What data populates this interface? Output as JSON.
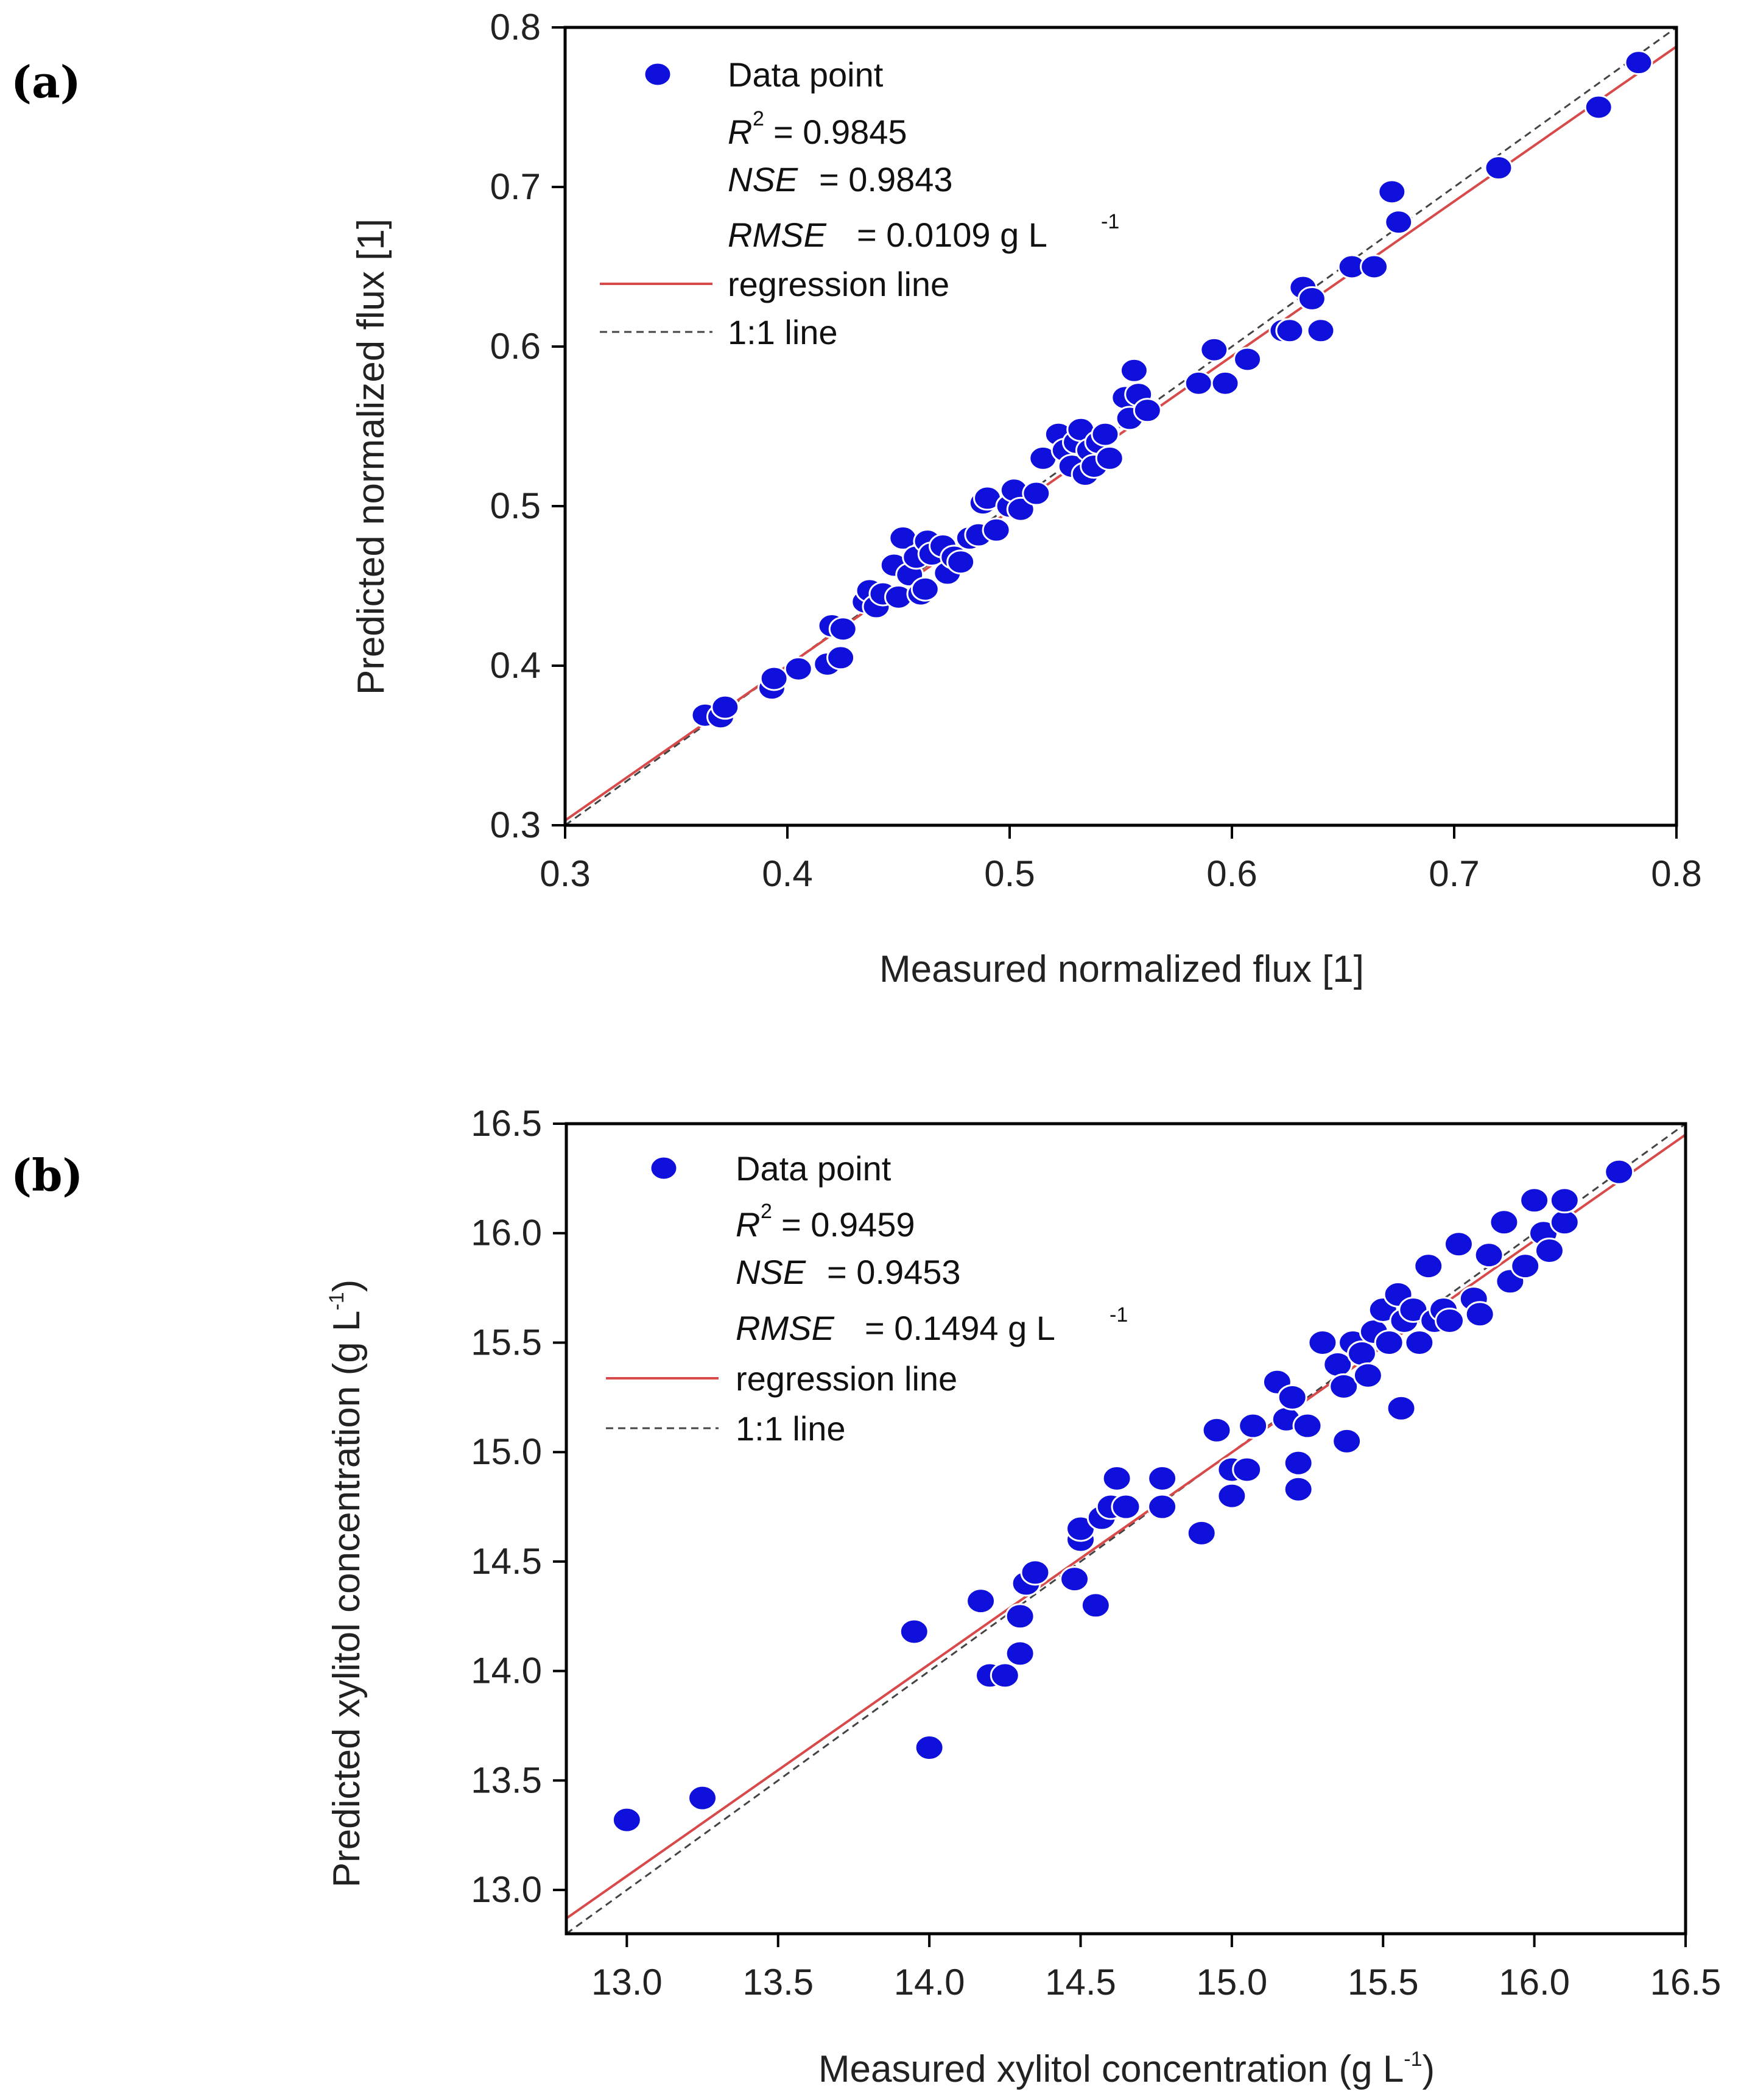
{
  "chart_data": [
    {
      "type": "scatter",
      "panel_label": "(a)",
      "xlabel": "Measured normalized flux [1]",
      "ylabel": "Predicted normalized flux [1]",
      "xlim": [
        0.3,
        0.8
      ],
      "ylim": [
        0.3,
        0.8
      ],
      "xticks": [
        "0.3",
        "0.4",
        "0.5",
        "0.6",
        "0.7",
        "0.8"
      ],
      "yticks": [
        "0.3",
        "0.4",
        "0.5",
        "0.6",
        "0.7",
        "0.8"
      ],
      "legend": {
        "data_point": "Data point",
        "r2_label": "R",
        "r2_sup": "2",
        "r2_value": "= 0.9845",
        "nse_label": "NSE",
        "nse_value": "= 0.9843",
        "rmse_label": "RMSE",
        "rmse_value": "= 0.0109 g L",
        "rmse_sup": "-1",
        "regression": "regression line",
        "oneone": "1:1 line"
      },
      "regression_line": [
        [
          0.3,
          0.303
        ],
        [
          0.8,
          0.788
        ]
      ],
      "x": [
        0.363,
        0.37,
        0.372,
        0.393,
        0.394,
        0.405,
        0.418,
        0.42,
        0.424,
        0.425,
        0.435,
        0.437,
        0.44,
        0.443,
        0.448,
        0.45,
        0.452,
        0.455,
        0.458,
        0.46,
        0.462,
        0.463,
        0.465,
        0.47,
        0.472,
        0.475,
        0.478,
        0.482,
        0.486,
        0.488,
        0.49,
        0.494,
        0.5,
        0.502,
        0.505,
        0.512,
        0.515,
        0.522,
        0.525,
        0.528,
        0.53,
        0.532,
        0.534,
        0.536,
        0.538,
        0.54,
        0.543,
        0.545,
        0.552,
        0.554,
        0.556,
        0.558,
        0.562,
        0.585,
        0.592,
        0.597,
        0.607,
        0.623,
        0.626,
        0.632,
        0.636,
        0.64,
        0.654,
        0.664,
        0.672,
        0.675,
        0.72,
        0.765,
        0.783
      ],
      "y": [
        0.369,
        0.368,
        0.374,
        0.386,
        0.392,
        0.398,
        0.401,
        0.425,
        0.405,
        0.423,
        0.44,
        0.447,
        0.437,
        0.445,
        0.463,
        0.443,
        0.48,
        0.457,
        0.468,
        0.445,
        0.448,
        0.478,
        0.47,
        0.475,
        0.458,
        0.468,
        0.465,
        0.48,
        0.482,
        0.502,
        0.505,
        0.485,
        0.5,
        0.51,
        0.498,
        0.508,
        0.53,
        0.545,
        0.535,
        0.525,
        0.54,
        0.548,
        0.52,
        0.535,
        0.525,
        0.54,
        0.545,
        0.53,
        0.568,
        0.555,
        0.585,
        0.57,
        0.56,
        0.577,
        0.598,
        0.577,
        0.592,
        0.61,
        0.61,
        0.637,
        0.63,
        0.61,
        0.65,
        0.65,
        0.697,
        0.678,
        0.712,
        0.75,
        0.778
      ]
    },
    {
      "type": "scatter",
      "panel_label": "(b)",
      "xlabel": "Measured xylitol concentration (g L",
      "xlabel_sup": "-1",
      "xlabel_end": ")",
      "ylabel": "Predicted xylitol concentration (g L",
      "ylabel_sup": "-1",
      "ylabel_end": ")",
      "xlim": [
        12.8,
        16.5
      ],
      "ylim": [
        12.8,
        16.5
      ],
      "xticks": [
        "13.0",
        "13.5",
        "14.0",
        "14.5",
        "15.0",
        "15.5",
        "16.0",
        "16.5"
      ],
      "yticks": [
        "13.0",
        "13.5",
        "14.0",
        "14.5",
        "15.0",
        "15.5",
        "16.0",
        "16.5"
      ],
      "legend": {
        "data_point": "Data point",
        "r2_label": "R",
        "r2_sup": "2",
        "r2_value": "= 0.9459",
        "nse_label": "NSE",
        "nse_value": "= 0.9453",
        "rmse_label": "RMSE",
        "rmse_value": "= 0.1494 g L",
        "rmse_sup": "-1",
        "regression": "regression line",
        "oneone": "1:1 line"
      },
      "regression_line": [
        [
          12.8,
          12.87
        ],
        [
          16.5,
          16.45
        ]
      ],
      "x": [
        13.0,
        13.25,
        13.95,
        14.0,
        14.17,
        14.2,
        14.25,
        14.3,
        14.3,
        14.32,
        14.35,
        14.48,
        14.5,
        14.5,
        14.55,
        14.57,
        14.6,
        14.62,
        14.65,
        14.77,
        14.77,
        14.9,
        14.95,
        15.0,
        15.0,
        15.05,
        15.07,
        15.15,
        15.18,
        15.2,
        15.22,
        15.22,
        15.25,
        15.3,
        15.35,
        15.37,
        15.38,
        15.4,
        15.43,
        15.45,
        15.47,
        15.5,
        15.52,
        15.55,
        15.56,
        15.57,
        15.6,
        15.62,
        15.65,
        15.67,
        15.7,
        15.72,
        15.75,
        15.8,
        15.82,
        15.85,
        15.9,
        15.92,
        15.97,
        16.0,
        16.03,
        16.05,
        16.1,
        16.1,
        16.28
      ],
      "y": [
        13.32,
        13.42,
        14.18,
        13.65,
        14.32,
        13.98,
        13.98,
        14.08,
        14.25,
        14.4,
        14.45,
        14.42,
        14.6,
        14.65,
        14.3,
        14.7,
        14.75,
        14.88,
        14.75,
        14.88,
        14.75,
        14.63,
        15.1,
        14.8,
        14.92,
        14.92,
        15.12,
        15.32,
        15.15,
        15.25,
        14.83,
        14.95,
        15.12,
        15.5,
        15.4,
        15.3,
        15.05,
        15.5,
        15.45,
        15.35,
        15.55,
        15.65,
        15.5,
        15.72,
        15.2,
        15.6,
        15.65,
        15.5,
        15.85,
        15.6,
        15.65,
        15.6,
        15.95,
        15.7,
        15.63,
        15.9,
        16.05,
        15.78,
        15.85,
        16.15,
        16.0,
        15.92,
        16.05,
        16.15,
        16.28
      ]
    }
  ]
}
